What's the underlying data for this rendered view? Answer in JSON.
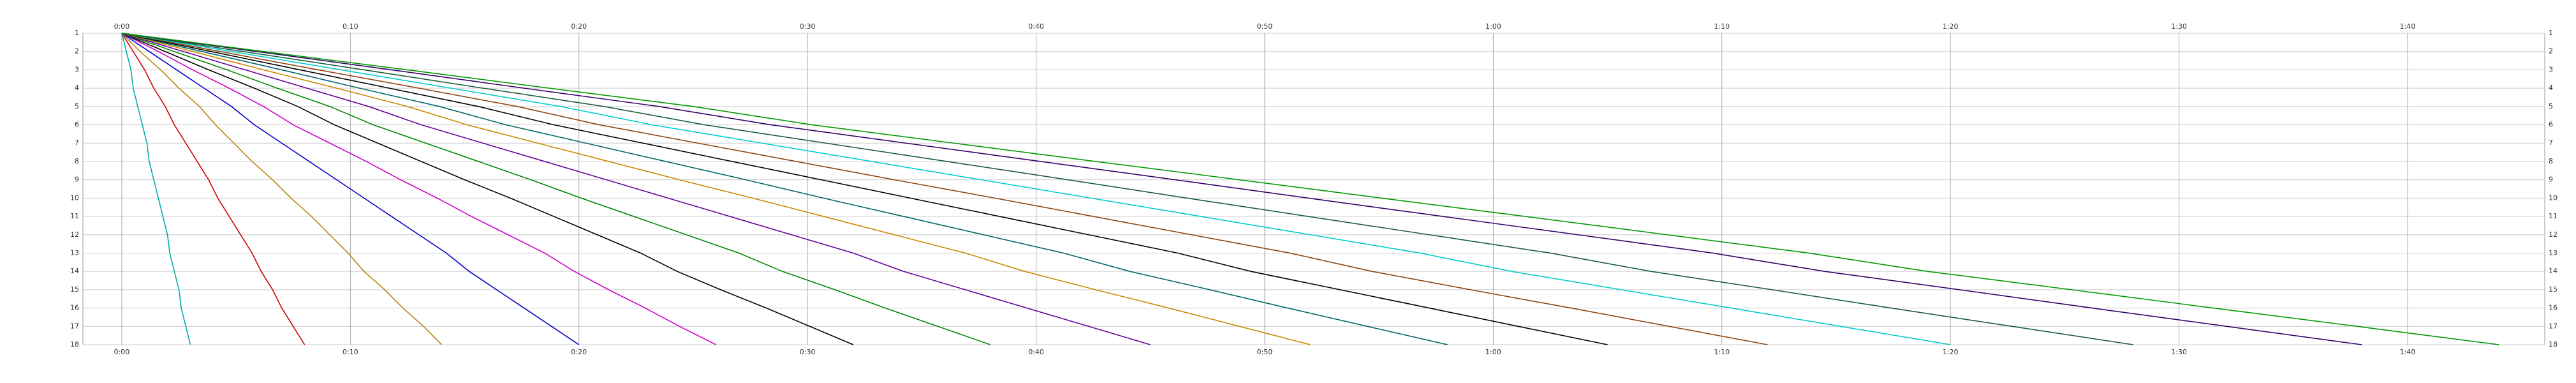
{
  "chart_data": {
    "type": "train-diagram",
    "xlim": [
      -1.7,
      106
    ],
    "xticks": [
      {
        "value": 0,
        "label": "0:00"
      },
      {
        "value": 10,
        "label": "0:10"
      },
      {
        "value": 20,
        "label": "0:20"
      },
      {
        "value": 30,
        "label": "0:30"
      },
      {
        "value": 40,
        "label": "0:40"
      },
      {
        "value": 50,
        "label": "0:50"
      },
      {
        "value": 60,
        "label": "1:00"
      },
      {
        "value": 70,
        "label": "1:10"
      },
      {
        "value": 80,
        "label": "1:20"
      },
      {
        "value": 90,
        "label": "1:30"
      },
      {
        "value": 100,
        "label": "1:40"
      }
    ],
    "categories": [
      "1",
      "2",
      "3",
      "4",
      "5",
      "6",
      "7",
      "8",
      "9",
      "10",
      "11",
      "12",
      "13",
      "14",
      "15",
      "16",
      "17",
      "18"
    ],
    "grid": true,
    "series": [
      {
        "color": "#00aaaa",
        "values": [
          0,
          0.2,
          0.4,
          0.5,
          0.7,
          0.9,
          1.1,
          1.2,
          1.4,
          1.6,
          1.8,
          2,
          2.1,
          2.3,
          2.5,
          2.6,
          2.8,
          3
        ]
      },
      {
        "color": "#cc0000",
        "values": [
          0,
          0.5,
          1,
          1.4,
          1.9,
          2.3,
          2.8,
          3.3,
          3.8,
          4.2,
          4.7,
          5.2,
          5.7,
          6.1,
          6.6,
          7,
          7.5,
          8
        ]
      },
      {
        "color": "#b8860b",
        "values": [
          0,
          0.8,
          1.7,
          2.5,
          3.4,
          4.1,
          4.9,
          5.7,
          6.6,
          7.4,
          8.3,
          9.1,
          9.9,
          10.6,
          11.5,
          12.3,
          13.2,
          14
        ]
      },
      {
        "color": "#0000cc",
        "values": [
          0,
          1.2,
          2.4,
          3.6,
          4.8,
          5.8,
          7,
          8.2,
          9.4,
          10.6,
          11.8,
          13,
          14.2,
          15.2,
          16.4,
          17.6,
          18.8,
          20
        ]
      },
      {
        "color": "#cc00cc",
        "values": [
          0,
          1.6,
          3.1,
          4.7,
          6.2,
          7.5,
          9.1,
          10.7,
          12.2,
          13.8,
          15.3,
          16.9,
          18.5,
          19.8,
          21.3,
          22.9,
          24.4,
          26
        ]
      },
      {
        "color": "#000000",
        "values": [
          0,
          1.9,
          3.8,
          5.8,
          7.7,
          9.3,
          11.2,
          13.1,
          15,
          17,
          18.9,
          20.8,
          22.7,
          24.3,
          26.2,
          28.2,
          30.1,
          32
        ]
      },
      {
        "color": "#008800",
        "values": [
          0,
          2.3,
          4.6,
          6.8,
          9.1,
          11,
          13.3,
          15.6,
          17.9,
          20.1,
          22.4,
          24.7,
          27,
          28.9,
          31.2,
          33.4,
          35.7,
          38
        ]
      },
      {
        "color": "#660099",
        "values": [
          0,
          2.7,
          5.4,
          8.1,
          10.8,
          13.1,
          15.8,
          18.5,
          21.2,
          23.9,
          26.6,
          29.3,
          32,
          34.2,
          36.9,
          39.6,
          42.3,
          45
        ]
      },
      {
        "color": "#cc8800",
        "values": [
          0,
          3.1,
          6.2,
          9.4,
          12.5,
          15.1,
          18.2,
          21.3,
          24.4,
          27.6,
          30.7,
          33.8,
          36.9,
          39.5,
          42.6,
          45.8,
          48.9,
          52
        ]
      },
      {
        "color": "#006666",
        "values": [
          0,
          3.5,
          7,
          10.4,
          13.9,
          16.8,
          20.3,
          23.8,
          27.3,
          30.7,
          34.2,
          37.7,
          41.2,
          44.1,
          47.6,
          51,
          54.5,
          58
        ]
      },
      {
        "color": "#000000",
        "values": [
          0,
          3.9,
          7.8,
          11.7,
          15.6,
          18.9,
          22.8,
          26.7,
          30.6,
          34.5,
          38.4,
          42.3,
          46.2,
          49.4,
          53.3,
          57.2,
          61.1,
          65
        ]
      },
      {
        "color": "#8b4513",
        "values": [
          0,
          4.3,
          8.6,
          13,
          17.3,
          20.9,
          25.2,
          29.5,
          33.8,
          38.2,
          42.5,
          46.8,
          51.1,
          54.7,
          59,
          63.4,
          67.7,
          72
        ]
      },
      {
        "color": "#00cccc",
        "values": [
          0,
          4.8,
          9.6,
          14.4,
          19.2,
          23.2,
          28,
          32.8,
          37.6,
          42.4,
          47.2,
          52,
          56.8,
          60.8,
          65.6,
          70.4,
          75.2,
          80
        ]
      },
      {
        "color": "#1a5c3a",
        "values": [
          0,
          5.3,
          10.6,
          15.8,
          21.1,
          25.5,
          30.8,
          36.1,
          41.4,
          46.6,
          51.9,
          57.2,
          62.5,
          66.9,
          72.2,
          77.4,
          82.7,
          88
        ]
      },
      {
        "color": "#330066",
        "values": [
          0,
          5.9,
          11.8,
          17.6,
          23.5,
          28.4,
          34.3,
          40.2,
          46.1,
          51.9,
          57.8,
          63.7,
          69.6,
          74.5,
          80.4,
          86.2,
          92.1,
          98
        ]
      },
      {
        "color": "#009900",
        "values": [
          0,
          6.2,
          12.5,
          18.7,
          25,
          30.2,
          36.4,
          42.6,
          48.9,
          55.1,
          61.4,
          67.6,
          73.8,
          79,
          85.3,
          91.5,
          97.8,
          104
        ]
      }
    ]
  }
}
